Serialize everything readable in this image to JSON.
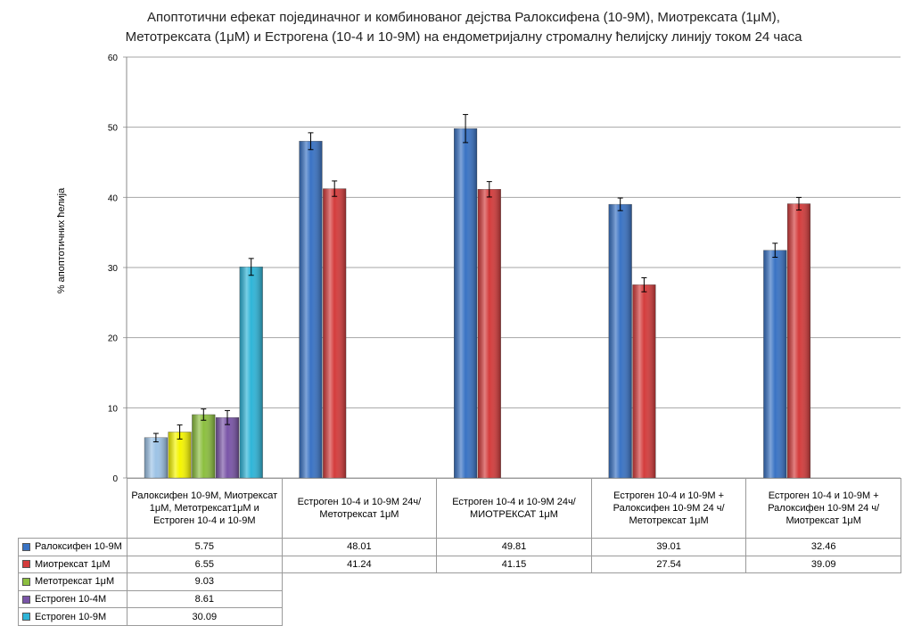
{
  "chart_data": {
    "type": "bar",
    "title": [
      "Апоптотични ефекат појединачног и комбинованог дејства Ралоксифена (10-9М), Миотрексата (1μM),",
      "Метотрексата (1μM) и Естрогена (10-4 и 10-9М) на ендометријалну стромалну ћелијску линију током 24 часа"
    ],
    "y_label": "% апоптотичних ћелија",
    "categories": [
      "Ралоксифен 10-9М, Миотрексат 1μM, Метотрексат1μM и Естроген 10-4 и 10-9М",
      "Естроген 10-4 и 10-9М 24ч/ Метотрексат 1μM",
      "Естроген 10-4 и 10-9М 24ч/ МИОТРЕКСАТ 1μM",
      "Естроген 10-4 и 10-9М + Ралоксифен 10-9М 24 ч/Метотрексат 1μM",
      "Естроген 10-4 и 10-9М + Ралоксифен 10-9М 24 ч/Миотрексат 1μM"
    ],
    "series": [
      {
        "name": "Ралоксифен 10-9М",
        "color": "#3a73c4",
        "colors": [
          "#9dc3e6",
          "#3a73c4",
          "#3a73c4",
          "#3a73c4",
          "#3a73c4"
        ],
        "values": [
          5.75,
          48.01,
          49.81,
          39.01,
          32.46
        ],
        "errors": [
          0.6,
          1.2,
          2.0,
          0.9,
          1.0
        ]
      },
      {
        "name": "Миотрексат 1μM",
        "color": "#d43c3c",
        "colors": [
          "#f5f500",
          "#d43c3c",
          "#d43c3c",
          "#d43c3c",
          "#d43c3c"
        ],
        "values": [
          6.55,
          41.24,
          41.15,
          27.54,
          39.09
        ],
        "errors": [
          1.0,
          1.1,
          1.1,
          1.0,
          0.9
        ]
      },
      {
        "name": "Метотрексат 1μM",
        "color": "#8cbf3f",
        "values": [
          9.03,
          null,
          null,
          null,
          null
        ],
        "errors": [
          0.8,
          null,
          null,
          null,
          null
        ]
      },
      {
        "name": "Естроген 10-4М",
        "color": "#7a55a8",
        "values": [
          8.61,
          null,
          null,
          null,
          null
        ],
        "errors": [
          1.0,
          null,
          null,
          null,
          null
        ]
      },
      {
        "name": "Естроген 10-9М",
        "color": "#2fb5d8",
        "values": [
          30.09,
          null,
          null,
          null,
          null
        ],
        "errors": [
          1.2,
          null,
          null,
          null,
          null
        ]
      }
    ],
    "ylim": [
      0,
      60
    ],
    "yticks": [
      0,
      10,
      20,
      30,
      40,
      50,
      60
    ],
    "grid": true
  }
}
